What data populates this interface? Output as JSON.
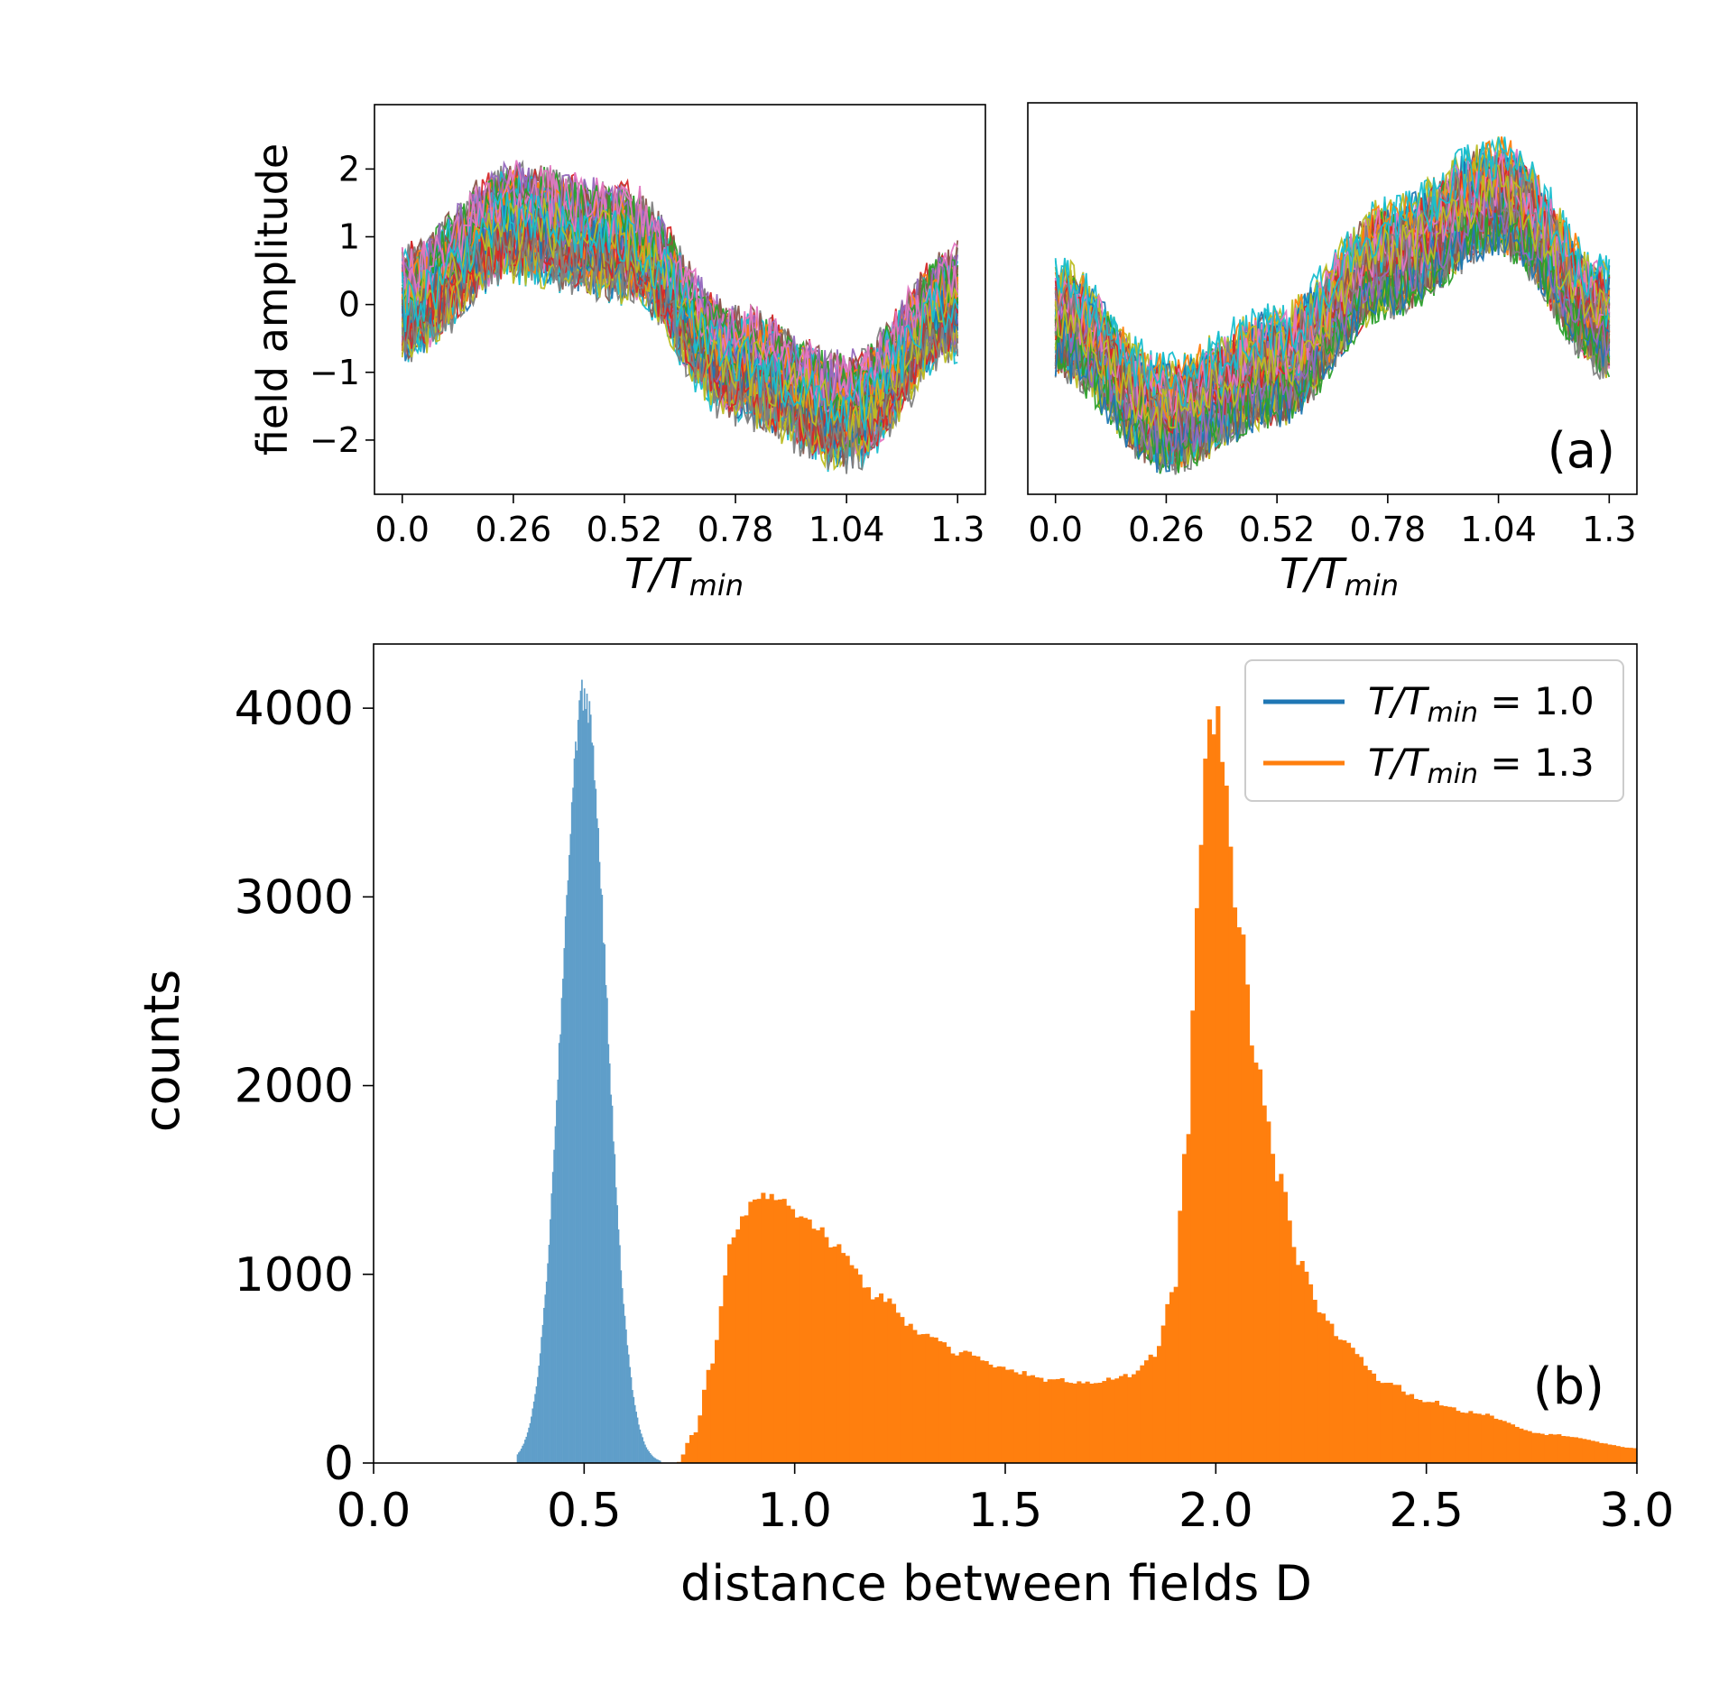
{
  "chart_data": [
    {
      "type": "line",
      "panel": "a-left",
      "title": "",
      "xlabel_main": "T/T",
      "xlabel_sub": "min",
      "ylabel": "field amplitude",
      "x_ticks": [
        "0.0",
        "0.26",
        "0.52",
        "0.78",
        "1.04",
        "1.3"
      ],
      "y_ticks": [
        "2",
        "1",
        "0",
        "−1",
        "−2"
      ],
      "xlim": [
        -0.065,
        1.365
      ],
      "ylim": [
        -2.8,
        2.95
      ],
      "series_count": 100,
      "mean_curve": {
        "x": [
          0.0,
          0.26,
          0.52,
          0.78,
          1.04,
          1.3
        ],
        "y": [
          0.0,
          1.2,
          0.9,
          -0.9,
          -1.6,
          0.0
        ]
      },
      "noise_amplitude": 0.9,
      "annotation": ""
    },
    {
      "type": "line",
      "panel": "a-right",
      "title": "",
      "xlabel_main": "T/T",
      "xlabel_sub": "min",
      "ylabel": "",
      "x_ticks": [
        "0.0",
        "0.26",
        "0.52",
        "0.78",
        "1.04",
        "1.3"
      ],
      "y_ticks": [],
      "xlim": [
        -0.065,
        1.365
      ],
      "ylim": [
        -2.8,
        2.95
      ],
      "series_count": 100,
      "mean_curve": {
        "x": [
          0.0,
          0.26,
          0.52,
          0.78,
          1.04,
          1.3
        ],
        "y": [
          -0.2,
          -1.6,
          -0.9,
          0.7,
          1.6,
          -0.2
        ]
      },
      "noise_amplitude": 0.9,
      "annotation": "(a)"
    },
    {
      "type": "bar",
      "panel": "b",
      "xlabel": "distance between fields D",
      "ylabel": "counts",
      "x_ticks": [
        "0.0",
        "0.5",
        "1.0",
        "1.5",
        "2.0",
        "2.5",
        "3.0"
      ],
      "y_ticks": [
        "0",
        "1000",
        "2000",
        "3000",
        "4000"
      ],
      "xlim": [
        0.0,
        3.0
      ],
      "ylim": [
        0,
        4340
      ],
      "annotation": "(b)",
      "legend_position": "top-right",
      "series": [
        {
          "name_main": "T/T",
          "name_sub": "min",
          "name_value": " = 1.0",
          "color": "#1f77b4",
          "bar_color": "#5f9ec9",
          "bin_width": 0.003,
          "peaks": [
            {
              "center": 0.5,
              "height": 4080,
              "sigma": 0.053
            }
          ],
          "x_range": [
            0.34,
            0.68
          ]
        },
        {
          "name_main": "T/T",
          "name_sub": "min",
          "name_value": " = 1.3",
          "color": "#ff7f0e",
          "bar_color": "#ff7f0e",
          "bin_width": 0.01,
          "points": {
            "x": [
              0.72,
              0.76,
              0.8,
              0.85,
              0.88,
              0.92,
              0.96,
              1.0,
              1.05,
              1.1,
              1.2,
              1.3,
              1.4,
              1.5,
              1.6,
              1.7,
              1.8,
              1.85,
              1.9,
              1.93,
              1.96,
              1.98,
              2.0,
              2.02,
              2.05,
              2.1,
              2.15,
              2.2,
              2.25,
              2.3,
              2.4,
              2.5,
              2.6,
              2.8,
              3.0
            ],
            "y": [
              0,
              150,
              500,
              1150,
              1350,
              1410,
              1400,
              1330,
              1250,
              1130,
              880,
              700,
              580,
              500,
              440,
              430,
              460,
              560,
              900,
              1700,
              3100,
              3850,
              3950,
              3600,
              2900,
              2050,
              1500,
              1050,
              800,
              650,
              430,
              330,
              270,
              150,
              80
            ]
          }
        }
      ]
    }
  ]
}
